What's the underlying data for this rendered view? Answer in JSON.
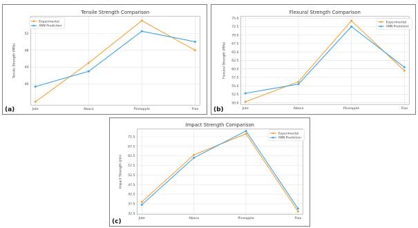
{
  "colors": {
    "experimental": "#f5a036",
    "ann": "#36a3e3"
  },
  "chart_data": [
    {
      "type": "line",
      "panel_label": "(a)",
      "title": "Tensile Strength Comparison",
      "xlabel": "",
      "ylabel": "Tensile Strength (MPa)",
      "categories": [
        "Jute",
        "Abaca",
        "Pineapple",
        "Flax"
      ],
      "ylim": [
        35,
        56
      ],
      "yticks": [
        "40",
        "44",
        "48",
        "52"
      ],
      "series": [
        {
          "name": "Experimental",
          "values": [
            35.8,
            45.0,
            55.0,
            48.0
          ]
        },
        {
          "name": "ANN Prediction",
          "values": [
            39.4,
            43.0,
            52.5,
            50.0
          ]
        }
      ]
    },
    {
      "type": "line",
      "panel_label": "(b)",
      "title": "Flexural Strength Comparison",
      "xlabel": "",
      "ylabel": "Flexural Strength (MPa)",
      "categories": [
        "Jute",
        "Abaca",
        "Pineapple",
        "Flax"
      ],
      "ylim": [
        49.5,
        75.5
      ],
      "yticks": [
        "50.0",
        "52.5",
        "55.0",
        "57.5",
        "60.0",
        "62.5",
        "65.0",
        "67.5",
        "70.0",
        "72.5",
        "75.0"
      ],
      "series": [
        {
          "name": "Experimental",
          "values": [
            50.3,
            56.2,
            74.2,
            59.5
          ]
        },
        {
          "name": "ANN Prediction",
          "values": [
            52.8,
            55.5,
            72.5,
            60.5
          ]
        }
      ]
    },
    {
      "type": "line",
      "panel_label": "(c)",
      "title": "Impact Strength Comparison",
      "xlabel": "",
      "ylabel": "Impact Strength (J/m)",
      "categories": [
        "Jute",
        "Abaca",
        "Pineapple",
        "Flax"
      ],
      "ylim": [
        32,
        76.5
      ],
      "yticks": [
        "32.5",
        "37.5",
        "42.5",
        "47.5",
        "52.5",
        "57.5",
        "62.5",
        "67.5",
        "72.5"
      ],
      "series": [
        {
          "name": "Experimental",
          "values": [
            38.5,
            63.0,
            74.0,
            33.5
          ]
        },
        {
          "name": "ANN Prediction",
          "values": [
            37.0,
            61.5,
            75.5,
            35.0
          ]
        }
      ]
    }
  ]
}
